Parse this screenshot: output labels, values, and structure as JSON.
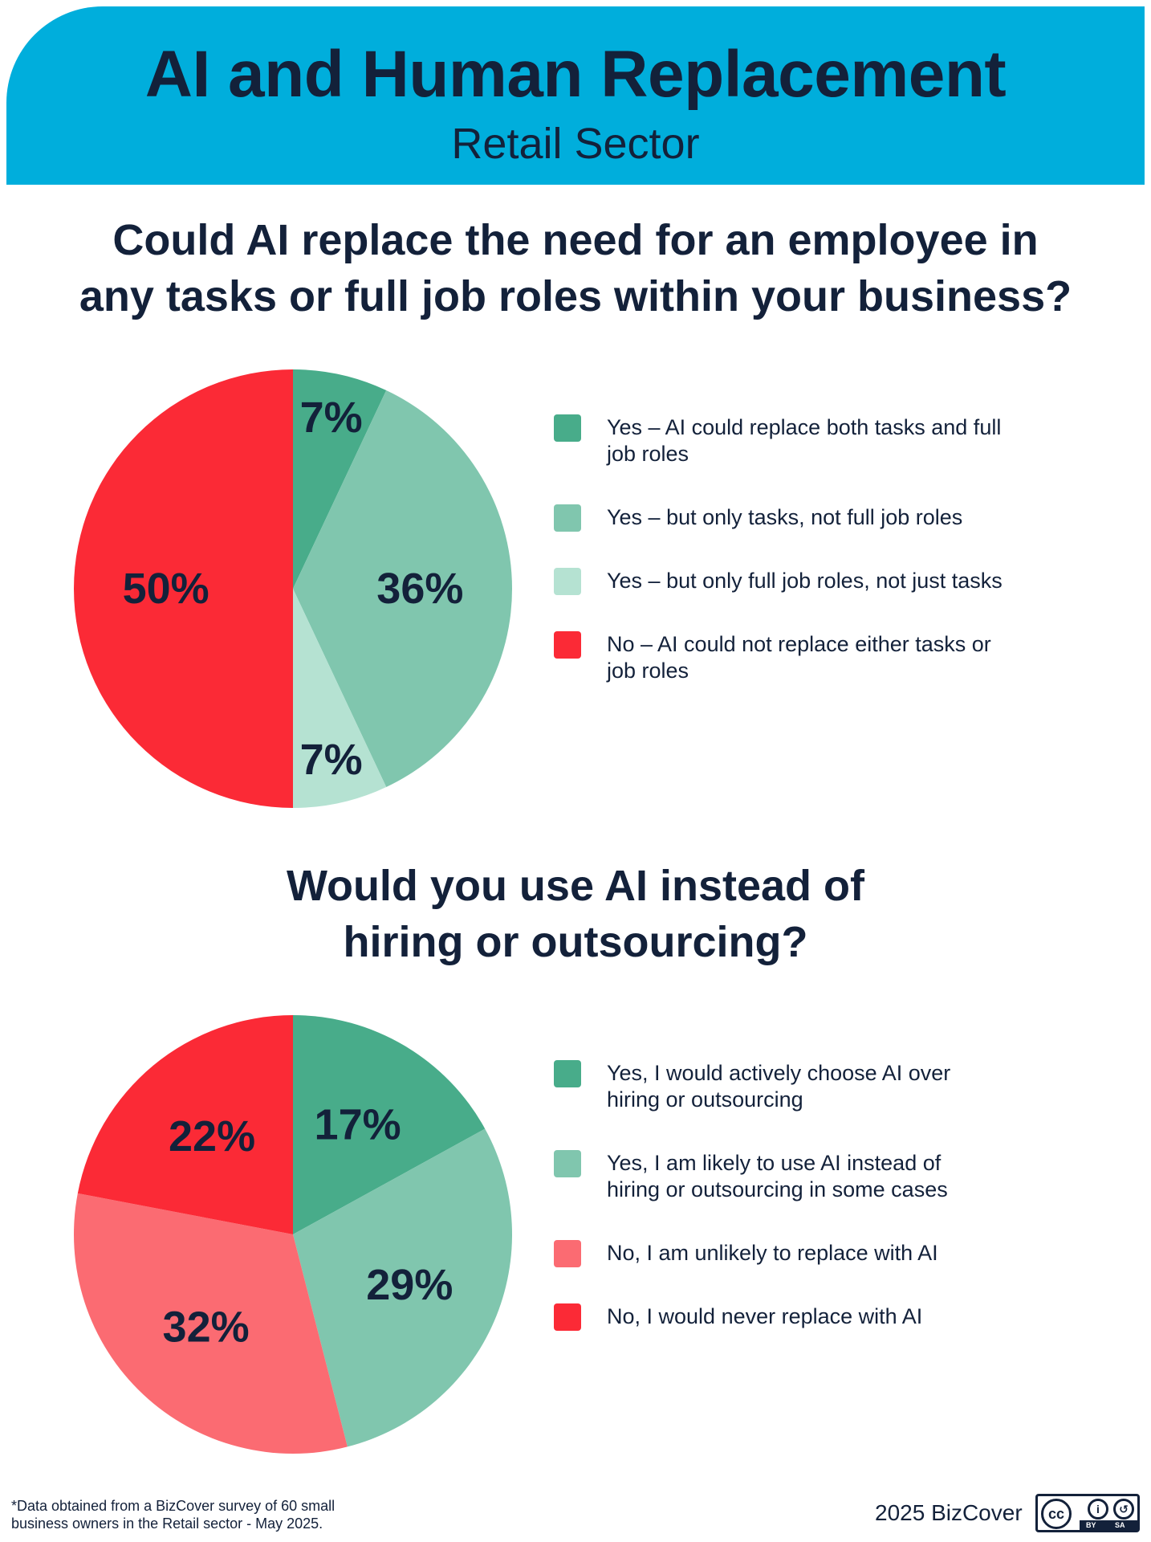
{
  "header": {
    "title": "AI and Human Replacement",
    "subtitle": "Retail Sector"
  },
  "chart_data": [
    {
      "type": "pie",
      "title_lines": [
        "Could AI replace the need for an employee in",
        "any tasks or full job roles within your business?"
      ],
      "slices": [
        {
          "name": "Yes – AI could replace both tasks and full job roles",
          "value": 7,
          "label": "7%",
          "color": "#48ac8a"
        },
        {
          "name": "Yes – but only tasks, not full job roles",
          "value": 36,
          "label": "36%",
          "color": "#80c6ae"
        },
        {
          "name": "Yes – but only full job roles, not just tasks",
          "value": 7,
          "label": "7%",
          "color": "#b5e2d2"
        },
        {
          "name": "No – AI could not replace either tasks or job roles",
          "value": 50,
          "label": "50%",
          "color": "#fb2a36"
        }
      ],
      "legend_lines": [
        [
          "Yes – AI could replace both tasks and full",
          "job roles"
        ],
        [
          "Yes – but only tasks, not full job roles"
        ],
        [
          "Yes – but only full job roles, not just tasks"
        ],
        [
          "No – AI could not replace either tasks or",
          "job roles"
        ]
      ],
      "legend_position": "right"
    },
    {
      "type": "pie",
      "title_lines": [
        "Would you use AI instead of",
        "hiring or outsourcing?"
      ],
      "slices": [
        {
          "name": "Yes, I would actively choose AI over hiring or outsourcing",
          "value": 17,
          "label": "17%",
          "color": "#48ac8a"
        },
        {
          "name": "Yes, I am likely to use AI instead of hiring or outsourcing in some cases",
          "value": 29,
          "label": "29%",
          "color": "#80c6ae"
        },
        {
          "name": "No, I am unlikely to replace with AI",
          "value": 32,
          "label": "32%",
          "color": "#fb6b72"
        },
        {
          "name": "No, I would never replace with AI",
          "value": 22,
          "label": "22%",
          "color": "#fb2a36"
        }
      ],
      "legend_lines": [
        [
          "Yes, I would actively choose AI over",
          "hiring or outsourcing"
        ],
        [
          "Yes, I am likely to use AI instead of",
          "hiring or outsourcing in some cases"
        ],
        [
          "No, I am unlikely to replace with AI"
        ],
        [
          "No, I would never replace with AI"
        ]
      ],
      "legend_position": "right"
    }
  ],
  "footer": {
    "note_lines": [
      "*Data obtained from a BizCover survey of 60 small",
      "business owners in the Retail sector - May 2025."
    ],
    "copyright": "2025 BizCover",
    "license": {
      "cc": "cc",
      "by": "BY",
      "sa": "SA",
      "icon": "creative-commons-by-sa-icon"
    }
  }
}
